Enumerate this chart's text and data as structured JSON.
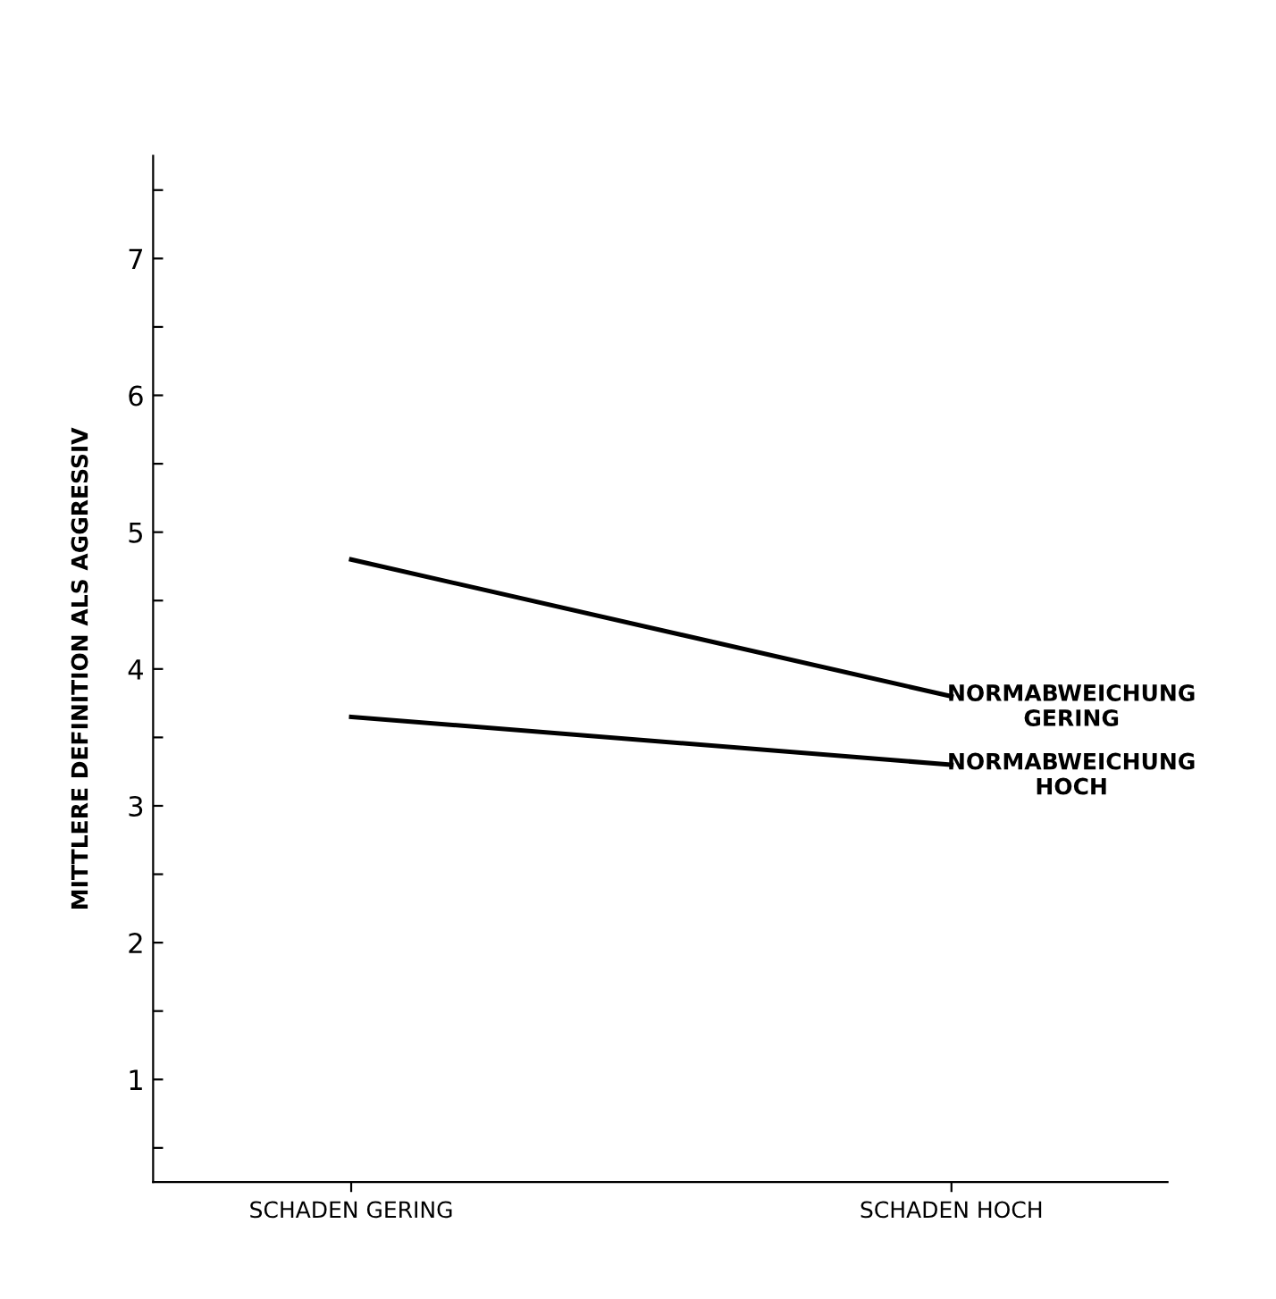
{
  "chart_data": {
    "type": "line",
    "ylabel": "MITTLERE DEFINITION ALS AGGRESSIV",
    "categories": [
      "SCHADEN GERING",
      "SCHADEN HOCH"
    ],
    "series": [
      {
        "name": "NORMABWEICHUNG\nGERING",
        "color": "#000000",
        "values": [
          4.8,
          3.8
        ]
      },
      {
        "name": "NORMABWEICHUNG\nHOCH",
        "color": "#000000",
        "values": [
          3.65,
          3.3
        ]
      }
    ],
    "ylim": [
      0.25,
      7.75
    ],
    "yticks": [
      {
        "value": 0.5,
        "label": null
      },
      1,
      {
        "value": 1.5,
        "label": null
      },
      2,
      {
        "value": 2.5,
        "label": null
      },
      3,
      {
        "value": 3.5,
        "label": null
      },
      4,
      {
        "value": 4.5,
        "label": null
      },
      5,
      {
        "value": 5.5,
        "label": null
      },
      6,
      {
        "value": 6.5,
        "label": null
      },
      7,
      {
        "value": 7.5,
        "label": null
      }
    ],
    "marker": "none",
    "line_style": "solid",
    "grid": false,
    "legend": false
  }
}
